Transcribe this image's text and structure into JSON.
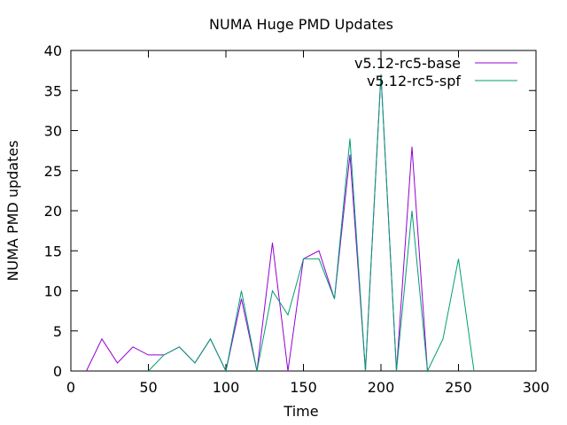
{
  "chart_data": {
    "type": "line",
    "title": "NUMA Huge PMD Updates",
    "xlabel": "Time",
    "ylabel": "NUMA PMD updates",
    "xlim": [
      0,
      300
    ],
    "ylim": [
      0,
      40
    ],
    "xticks": [
      0,
      50,
      100,
      150,
      200,
      250,
      300
    ],
    "yticks": [
      0,
      5,
      10,
      15,
      20,
      25,
      30,
      35,
      40
    ],
    "grid": false,
    "legend_position": "top-right",
    "series": [
      {
        "name": "v5.12-rc5-base",
        "color": "#9400d3",
        "x": [
          10,
          20,
          30,
          40,
          50,
          60,
          70,
          80,
          90,
          100,
          110,
          120,
          130,
          140,
          150,
          160,
          170,
          180,
          190,
          200,
          210,
          220,
          230
        ],
        "y": [
          0,
          4,
          1,
          3,
          2,
          2,
          3,
          1,
          4,
          0,
          9,
          0,
          16,
          0,
          14,
          15,
          9,
          27,
          0,
          37,
          0,
          28,
          0
        ]
      },
      {
        "name": "v5.12-rc5-spf",
        "color": "#009e73",
        "x": [
          50,
          60,
          70,
          80,
          90,
          100,
          110,
          120,
          130,
          140,
          150,
          160,
          170,
          180,
          190,
          200,
          210,
          220,
          230,
          240,
          250,
          260
        ],
        "y": [
          0,
          2,
          3,
          1,
          4,
          0,
          10,
          0,
          10,
          7,
          14,
          14,
          9,
          29,
          0,
          37,
          0,
          20,
          0,
          4,
          14,
          0
        ]
      }
    ]
  }
}
